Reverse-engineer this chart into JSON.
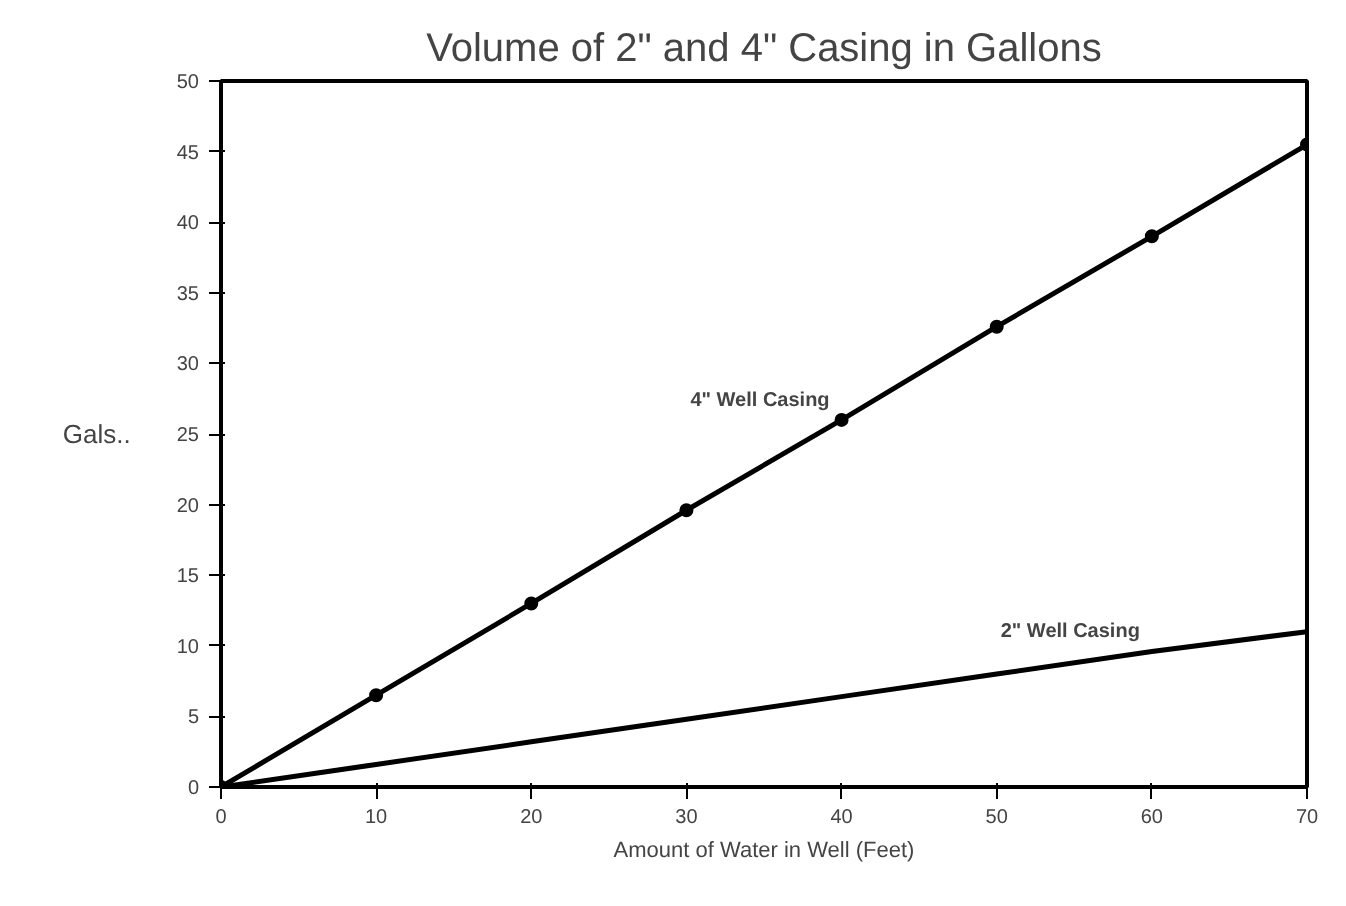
{
  "chart_data": {
    "type": "line",
    "title": "Volume of 2\" and 4\" Casing in Gallons",
    "xlabel": "Amount of Water in Well (Feet)",
    "ylabel": "Gals..",
    "x": [
      0,
      10,
      20,
      30,
      40,
      50,
      60,
      70
    ],
    "series": [
      {
        "name": "4\" Well Casing",
        "color": "#000000",
        "marker": "circle",
        "values": [
          0,
          6.5,
          13,
          19.6,
          26,
          32.6,
          39,
          45.5
        ]
      },
      {
        "name": "2\" Well Casing",
        "color": "#000000",
        "marker": "none",
        "values": [
          0,
          1.6,
          3.2,
          4.8,
          6.4,
          8,
          9.6,
          11
        ]
      }
    ],
    "xlim": [
      0,
      70
    ],
    "ylim": [
      0,
      50
    ],
    "xticks": [
      0,
      10,
      20,
      30,
      40,
      50,
      60,
      70
    ],
    "yticks": [
      0,
      5,
      10,
      15,
      20,
      25,
      30,
      35,
      40,
      45,
      50
    ],
    "grid": false,
    "line_style": "solid"
  }
}
